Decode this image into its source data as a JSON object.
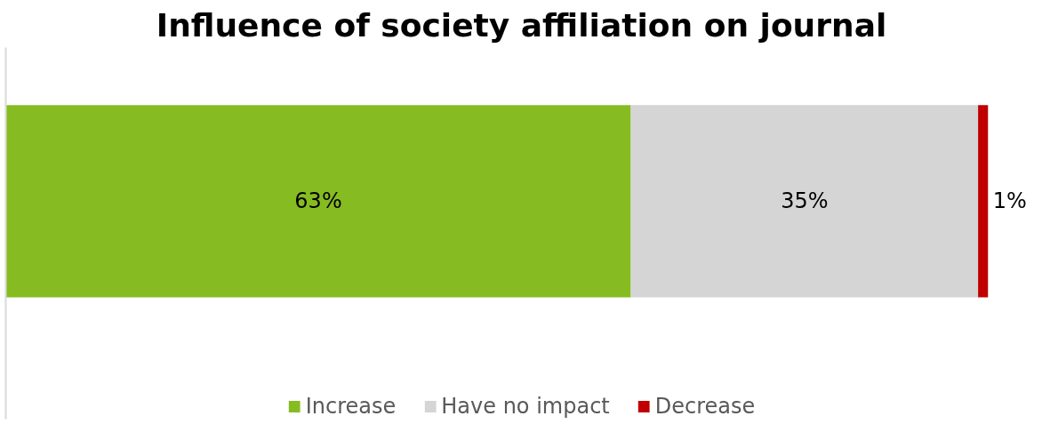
{
  "chart_data": {
    "type": "bar",
    "orientation": "horizontal",
    "stacked": true,
    "title": "Influence of society affiliation on journal",
    "categories": [
      null
    ],
    "series": [
      {
        "name": "Increase",
        "color": "#86bc22",
        "values": [
          63
        ],
        "value_labels": [
          "63%"
        ]
      },
      {
        "name": "Have no impact",
        "color": "#d5d5d5",
        "values": [
          35
        ],
        "value_labels": [
          "35%"
        ]
      },
      {
        "name": "Decrease",
        "color": "#c00000",
        "values": [
          1
        ],
        "value_labels": [
          "1%"
        ]
      }
    ],
    "legend": "bottom",
    "tick_labels": false
  }
}
